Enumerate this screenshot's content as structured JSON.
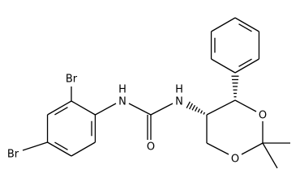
{
  "molecule": {
    "atoms": [
      {
        "label": "Br"
      },
      {
        "label": "Br"
      },
      {
        "label": "N",
        "hydrogen": "H"
      },
      {
        "label": "O"
      },
      {
        "label": "N",
        "hydrogen": "H"
      },
      {
        "label": "O"
      },
      {
        "label": "O"
      }
    ]
  }
}
